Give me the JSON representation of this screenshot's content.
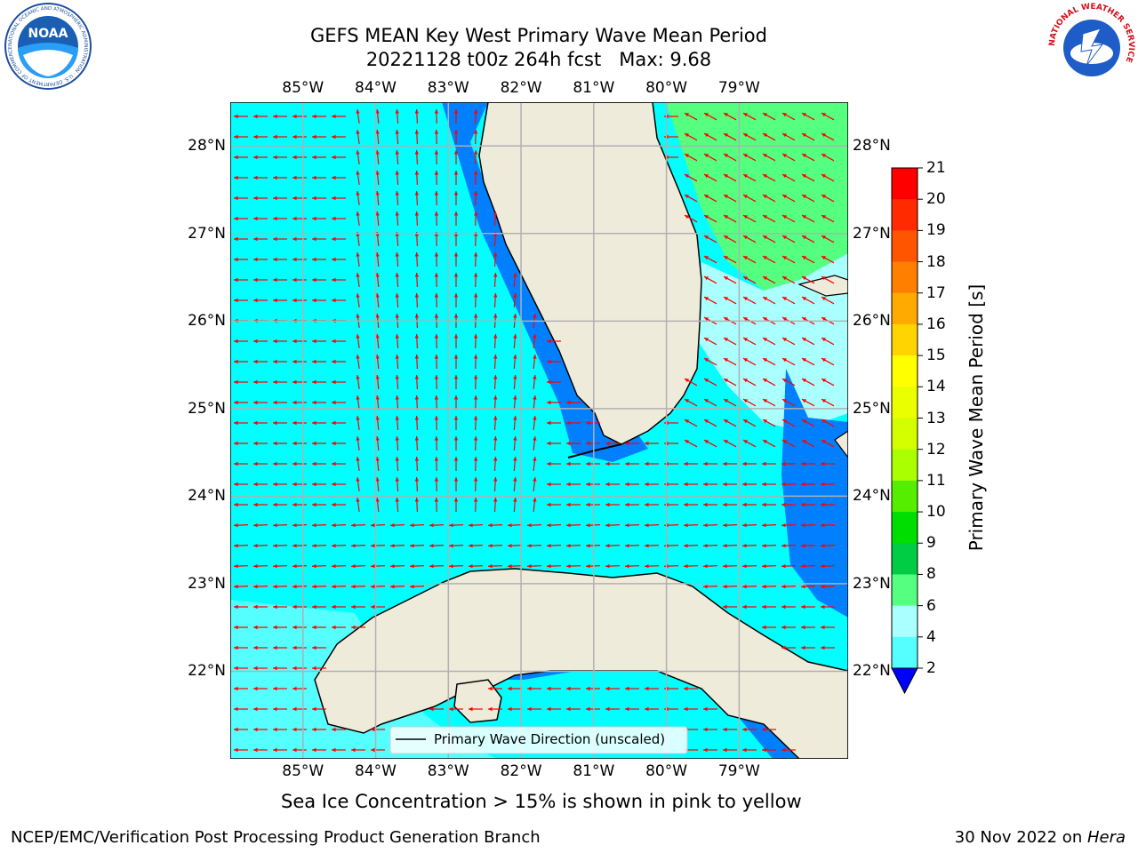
{
  "title": {
    "line1": "GEFS MEAN Key West Primary Wave Mean Period",
    "line2": "20221128 t00z 264h fcst   Max: 9.68"
  },
  "logos": {
    "noaa_text": "NOAA",
    "noaa_ring": "NATIONAL OCEANIC AND ATMOSPHERIC ADMINISTRATION · U.S. DEPARTMENT OF COMMERCE",
    "nws_ring": "NATIONAL WEATHER SERVICE"
  },
  "map": {
    "lon_labels": [
      "85°W",
      "84°W",
      "83°W",
      "82°W",
      "81°W",
      "80°W",
      "79°W"
    ],
    "lat_labels": [
      "28°N",
      "27°N",
      "26°N",
      "25°N",
      "24°N",
      "23°N",
      "22°N"
    ],
    "lon_range": [
      -86.0,
      -77.5
    ],
    "lat_range": [
      21.0,
      28.5
    ],
    "legend_label": "Primary Wave Direction (unscaled)",
    "colors": {
      "ocean_main": "#00ffff",
      "ocean_shallow": "#0080ff",
      "ocean_light": "#80ffff",
      "ocean_green": "#55ff7f",
      "land": "#efebdb",
      "arrows": "#ff0000",
      "grid": "#b0b0b0"
    }
  },
  "colorbar": {
    "label": "Primary Wave Mean Period [s]",
    "ticks": [
      "21",
      "20",
      "19",
      "18",
      "17",
      "16",
      "15",
      "14",
      "13",
      "12",
      "11",
      "10",
      "9",
      "8",
      "6",
      "4",
      "2"
    ],
    "colors_top_to_bottom": [
      "#ff0000",
      "#ff2a00",
      "#ff5500",
      "#ff7f00",
      "#ffaa00",
      "#ffd400",
      "#ffff00",
      "#eaff00",
      "#d4ff00",
      "#aaff00",
      "#55ee00",
      "#00dd00",
      "#00cc44",
      "#55ff7f",
      "#aaffff",
      "#55ffff",
      "#00ffff",
      "#0080ff"
    ],
    "under_color": "#0000ff"
  },
  "caption": "Sea Ice Concentration > 15% is shown in pink to yellow",
  "footer": {
    "left": "NCEP/EMC/Verification Post Processing Product Generation Branch",
    "date": "30 Nov 2022 on ",
    "host": "Hera"
  }
}
